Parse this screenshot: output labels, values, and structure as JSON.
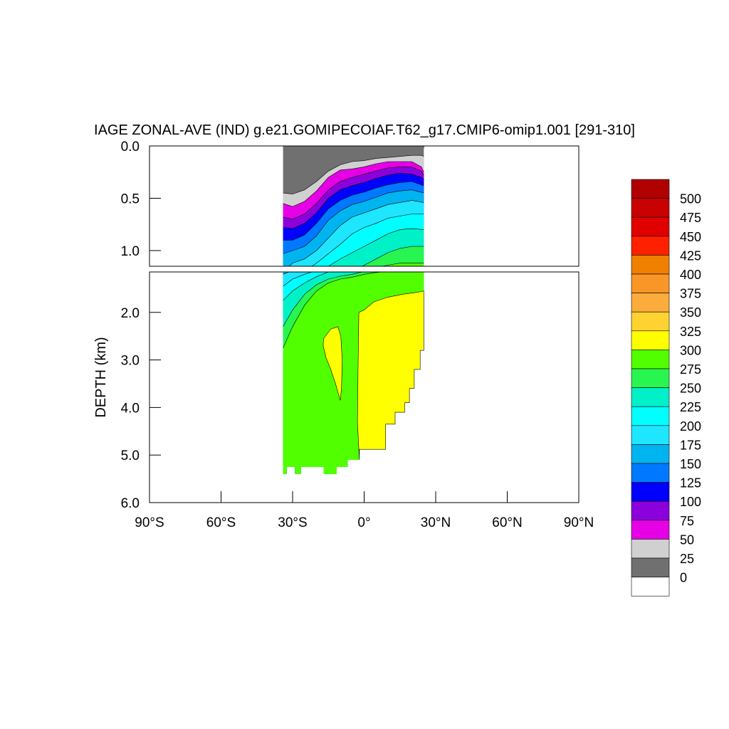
{
  "chart_data": {
    "type": "heatmap",
    "title": "IAGE ZONAL-AVE (IND) g.e21.GOMIPECOIAF.T62_g17.CMIP6-omip1.001 [291-310]",
    "xlabel": "",
    "ylabel": "DEPTH (km)",
    "xlim": [
      -90,
      90
    ],
    "x_ticks": [
      {
        "value": -90,
        "label": "90°S"
      },
      {
        "value": -60,
        "label": "60°S"
      },
      {
        "value": -30,
        "label": "30°S"
      },
      {
        "value": 0,
        "label": "0°"
      },
      {
        "value": 30,
        "label": "30°N"
      },
      {
        "value": 60,
        "label": "60°N"
      },
      {
        "value": 90,
        "label": "90°N"
      }
    ],
    "upper_panel": {
      "ylim": [
        0.0,
        1.15
      ],
      "y_ticks": [
        {
          "value": 0.0,
          "label": "0.0"
        },
        {
          "value": 0.5,
          "label": "0.5"
        },
        {
          "value": 1.0,
          "label": "1.0"
        }
      ]
    },
    "lower_panel": {
      "ylim": [
        1.15,
        6.0
      ],
      "y_ticks": [
        {
          "value": 2.0,
          "label": "2.0"
        },
        {
          "value": 3.0,
          "label": "3.0"
        },
        {
          "value": 4.0,
          "label": "4.0"
        },
        {
          "value": 5.0,
          "label": "5.0"
        },
        {
          "value": 6.0,
          "label": "6.0"
        }
      ]
    },
    "data_extent": {
      "lat_min": -34,
      "lat_max": 25,
      "max_depth_km": 5.4
    },
    "contour_levels": [
      0,
      25,
      50,
      75,
      100,
      125,
      150,
      175,
      200,
      225,
      250,
      275,
      300,
      325,
      350,
      375,
      400,
      425,
      450,
      475,
      500
    ],
    "colorbar": {
      "labels": [
        "500",
        "475",
        "450",
        "425",
        "400",
        "375",
        "350",
        "325",
        "300",
        "275",
        "250",
        "225",
        "200",
        "175",
        "150",
        "125",
        "100",
        "75",
        "50",
        "25",
        "0"
      ],
      "colors": [
        "#b00000",
        "#c80000",
        "#e00000",
        "#ff2000",
        "#f08000",
        "#fa9628",
        "#fcac3c",
        "#ffd232",
        "#ffff00",
        "#52ff00",
        "#28f550",
        "#00f0c8",
        "#00ffff",
        "#1ee6ff",
        "#00b4f0",
        "#0078ff",
        "#0000ff",
        "#8c00dc",
        "#e600e6",
        "#d0d0d0",
        "#707070",
        "#ffffff"
      ]
    },
    "age_contours": [
      {
        "level": 0,
        "color": "#707070",
        "points": [
          [
            -34,
            0.0
          ],
          [
            25,
            0.0
          ]
        ]
      },
      {
        "level": 25,
        "color": "#d0d0d0",
        "points": [
          [
            -34,
            0.45
          ],
          [
            -30,
            0.46
          ],
          [
            -25,
            0.42
          ],
          [
            -20,
            0.34
          ],
          [
            -15,
            0.24
          ],
          [
            -10,
            0.18
          ],
          [
            -5,
            0.15
          ],
          [
            0,
            0.14
          ],
          [
            5,
            0.12
          ],
          [
            10,
            0.11
          ],
          [
            15,
            0.1
          ],
          [
            20,
            0.09
          ],
          [
            24,
            0.09
          ],
          [
            25,
            0.1
          ]
        ]
      },
      {
        "level": 50,
        "color": "#e600e6",
        "points": [
          [
            -34,
            0.55
          ],
          [
            -30,
            0.58
          ],
          [
            -25,
            0.53
          ],
          [
            -20,
            0.43
          ],
          [
            -15,
            0.3
          ],
          [
            -10,
            0.23
          ],
          [
            -5,
            0.22
          ],
          [
            0,
            0.2
          ],
          [
            5,
            0.17
          ],
          [
            10,
            0.15
          ],
          [
            15,
            0.15
          ],
          [
            20,
            0.15
          ],
          [
            24,
            0.2
          ],
          [
            25,
            0.25
          ]
        ]
      },
      {
        "level": 75,
        "color": "#8c00dc",
        "points": [
          [
            -34,
            0.68
          ],
          [
            -30,
            0.7
          ],
          [
            -25,
            0.65
          ],
          [
            -20,
            0.55
          ],
          [
            -15,
            0.42
          ],
          [
            -10,
            0.34
          ],
          [
            -5,
            0.3
          ],
          [
            0,
            0.27
          ],
          [
            5,
            0.24
          ],
          [
            10,
            0.21
          ],
          [
            15,
            0.2
          ],
          [
            20,
            0.2
          ],
          [
            24,
            0.24
          ],
          [
            25,
            0.28
          ]
        ]
      },
      {
        "level": 100,
        "color": "#0000ff",
        "points": [
          [
            -34,
            0.78
          ],
          [
            -30,
            0.79
          ],
          [
            -25,
            0.74
          ],
          [
            -20,
            0.64
          ],
          [
            -15,
            0.5
          ],
          [
            -10,
            0.42
          ],
          [
            -5,
            0.38
          ],
          [
            0,
            0.35
          ],
          [
            5,
            0.31
          ],
          [
            10,
            0.28
          ],
          [
            15,
            0.26
          ],
          [
            20,
            0.27
          ],
          [
            24,
            0.3
          ],
          [
            25,
            0.32
          ]
        ]
      },
      {
        "level": 125,
        "color": "#0078ff",
        "points": [
          [
            -34,
            0.9
          ],
          [
            -30,
            0.9
          ],
          [
            -25,
            0.85
          ],
          [
            -20,
            0.74
          ],
          [
            -15,
            0.6
          ],
          [
            -10,
            0.52
          ],
          [
            -5,
            0.47
          ],
          [
            0,
            0.44
          ],
          [
            5,
            0.4
          ],
          [
            10,
            0.37
          ],
          [
            15,
            0.35
          ],
          [
            20,
            0.34
          ],
          [
            25,
            0.38
          ]
        ]
      },
      {
        "level": 150,
        "color": "#00b4f0",
        "points": [
          [
            -34,
            1.03
          ],
          [
            -30,
            1.0
          ],
          [
            -25,
            0.96
          ],
          [
            -20,
            0.86
          ],
          [
            -15,
            0.71
          ],
          [
            -10,
            0.62
          ],
          [
            -5,
            0.56
          ],
          [
            0,
            0.53
          ],
          [
            5,
            0.49
          ],
          [
            10,
            0.45
          ],
          [
            15,
            0.43
          ],
          [
            20,
            0.42
          ],
          [
            25,
            0.45
          ]
        ]
      },
      {
        "level": 175,
        "color": "#1ee6ff",
        "points": [
          [
            -34,
            1.2
          ],
          [
            -30,
            1.12
          ],
          [
            -25,
            1.08
          ],
          [
            -20,
            1.0
          ],
          [
            -15,
            0.88
          ],
          [
            -10,
            0.76
          ],
          [
            -5,
            0.68
          ],
          [
            0,
            0.64
          ],
          [
            5,
            0.6
          ],
          [
            10,
            0.56
          ],
          [
            15,
            0.54
          ],
          [
            20,
            0.52
          ],
          [
            25,
            0.54
          ]
        ]
      },
      {
        "level": 200,
        "color": "#00ffff",
        "points": [
          [
            -34,
            1.45
          ],
          [
            -30,
            1.3
          ],
          [
            -25,
            1.2
          ],
          [
            -20,
            1.12
          ],
          [
            -15,
            1.03
          ],
          [
            -10,
            0.94
          ],
          [
            -5,
            0.84
          ],
          [
            0,
            0.78
          ],
          [
            5,
            0.74
          ],
          [
            10,
            0.69
          ],
          [
            15,
            0.67
          ],
          [
            20,
            0.65
          ],
          [
            25,
            0.65
          ]
        ]
      },
      {
        "level": 225,
        "color": "#00f0c8",
        "points": [
          [
            -34,
            1.75
          ],
          [
            -30,
            1.55
          ],
          [
            -25,
            1.38
          ],
          [
            -20,
            1.25
          ],
          [
            -15,
            1.15
          ],
          [
            -10,
            1.08
          ],
          [
            -5,
            1.02
          ],
          [
            0,
            0.96
          ],
          [
            5,
            0.9
          ],
          [
            10,
            0.84
          ],
          [
            15,
            0.8
          ],
          [
            20,
            0.79
          ],
          [
            25,
            0.8
          ]
        ]
      },
      {
        "level": 250,
        "color": "#28f550",
        "points": [
          [
            -34,
            2.3
          ],
          [
            -30,
            1.95
          ],
          [
            -25,
            1.62
          ],
          [
            -20,
            1.42
          ],
          [
            -15,
            1.3
          ],
          [
            -10,
            1.24
          ],
          [
            -5,
            1.2
          ],
          [
            0,
            1.14
          ],
          [
            5,
            1.08
          ],
          [
            10,
            1.02
          ],
          [
            15,
            0.98
          ],
          [
            20,
            0.96
          ],
          [
            25,
            0.96
          ]
        ]
      },
      {
        "level": 275,
        "color": "#52ff00",
        "points": [
          [
            -34,
            2.75
          ],
          [
            -30,
            2.3
          ],
          [
            -25,
            1.85
          ],
          [
            -20,
            1.55
          ],
          [
            -15,
            1.38
          ],
          [
            -10,
            1.3
          ],
          [
            -5,
            1.26
          ],
          [
            0,
            1.2
          ],
          [
            5,
            1.16
          ],
          [
            10,
            1.14
          ],
          [
            15,
            1.12
          ],
          [
            20,
            1.12
          ],
          [
            25,
            1.12
          ]
        ]
      }
    ],
    "age_300_regions": [
      {
        "level": 300,
        "color": "#ffff00",
        "points": [
          [
            -2,
            5.1
          ],
          [
            -2.8,
            4.3
          ],
          [
            -2.5,
            3.0
          ],
          [
            -2.2,
            2.0
          ],
          [
            0,
            1.95
          ],
          [
            4,
            1.78
          ],
          [
            10,
            1.68
          ],
          [
            16,
            1.62
          ],
          [
            22,
            1.58
          ],
          [
            25,
            1.55
          ],
          [
            25,
            2.8
          ],
          [
            23.5,
            2.8
          ],
          [
            23.5,
            3.2
          ],
          [
            21,
            3.2
          ],
          [
            21,
            3.6
          ],
          [
            19,
            3.6
          ],
          [
            19,
            3.9
          ],
          [
            17,
            3.9
          ],
          [
            17,
            4.1
          ],
          [
            13,
            4.1
          ],
          [
            13,
            4.35
          ],
          [
            9,
            4.35
          ],
          [
            9,
            4.88
          ],
          [
            -2,
            4.88
          ]
        ]
      },
      {
        "level": 300,
        "color": "#ffff00",
        "points": [
          [
            -17,
            2.55
          ],
          [
            -14,
            2.35
          ],
          [
            -11,
            2.3
          ],
          [
            -9.8,
            2.5
          ],
          [
            -9.2,
            3.0
          ],
          [
            -9.5,
            3.6
          ],
          [
            -10,
            3.85
          ],
          [
            -12,
            3.5
          ],
          [
            -14,
            3.2
          ],
          [
            -16,
            2.95
          ],
          [
            -17.2,
            2.7
          ]
        ]
      }
    ]
  }
}
